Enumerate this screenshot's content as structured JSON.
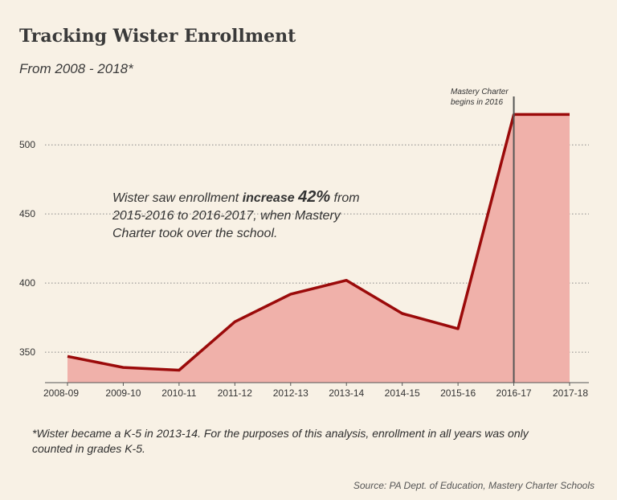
{
  "title": "Tracking Wister Enrollment",
  "subtitle": "From 2008 - 2018*",
  "annotation": {
    "pre": "Wister saw enrollment ",
    "bold1": "increase",
    "bold2": "42%",
    "post": " from 2015-2016 to 2016-2017, when Mastery Charter took over the school."
  },
  "marker_note": {
    "line1": "Mastery Charter",
    "line2": "begins in 2016"
  },
  "footnote": "*Wister became a K-5 in 2013-14. For the purposes of this analysis, enrollment in all years was only counted in grades K-5.",
  "source": "Source: PA Dept. of Education, Mastery Charter Schools",
  "chart_data": {
    "type": "area",
    "categories": [
      "2008-09",
      "2009-10",
      "2010-11",
      "2011-12",
      "2012-13",
      "2013-14",
      "2014-15",
      "2015-16",
      "2016-17",
      "2017-18"
    ],
    "series": [
      {
        "values": [
          347,
          339,
          337,
          372,
          392,
          402,
          378,
          367,
          522,
          522
        ]
      }
    ],
    "yticks": [
      350,
      400,
      450,
      500
    ],
    "ylim": [
      328,
      535
    ],
    "grid": true,
    "marker_category": "2016-17",
    "colors": {
      "line": "#9b0a0a",
      "fill": "#f0b1aa",
      "marker": "#555555",
      "grid": "#888888"
    }
  }
}
